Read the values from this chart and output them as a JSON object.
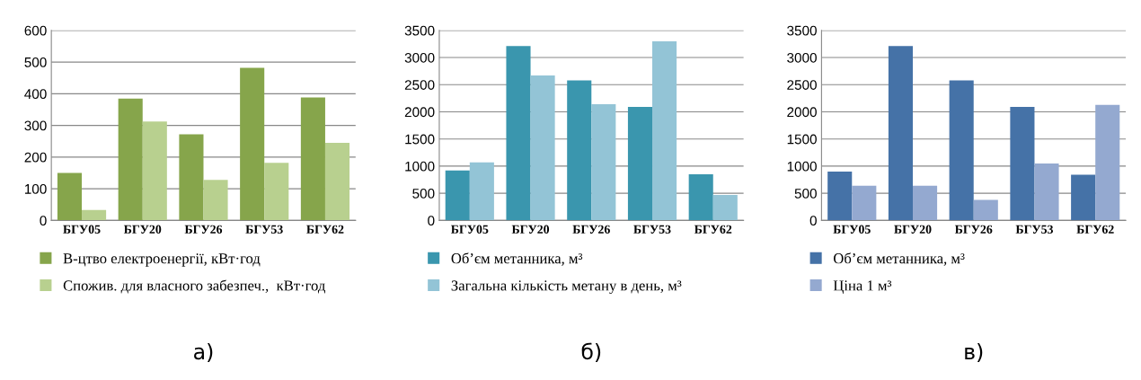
{
  "chart_data": [
    {
      "type": "bar",
      "categories": [
        "БГУ05",
        "БГУ20",
        "БГУ26",
        "БГУ53",
        "БГУ62"
      ],
      "ylim": [
        0,
        600
      ],
      "yticks": [
        0,
        100,
        200,
        300,
        400,
        500,
        600
      ],
      "grid": "y",
      "legend": "bottom",
      "annotations": [
        "а)"
      ],
      "series": [
        {
          "name": "В-цтво електроенергії, кВт·год",
          "color": "#86a54b",
          "values": [
            150,
            385,
            272,
            482,
            388
          ]
        },
        {
          "name": "Спожив. для власного забезпеч.,  кВт·год",
          "color": "#b8d08f",
          "values": [
            33,
            312,
            128,
            182,
            245
          ]
        }
      ]
    },
    {
      "type": "bar",
      "categories": [
        "БГУ05",
        "БГУ20",
        "БГУ26",
        "БГУ53",
        "БГУ62"
      ],
      "ylim": [
        0,
        3500
      ],
      "yticks": [
        0,
        500,
        1000,
        1500,
        2000,
        2500,
        3000,
        3500
      ],
      "grid": "y",
      "legend": "bottom",
      "annotations": [
        "б)"
      ],
      "series": [
        {
          "name": "Об’єм метанника, м³",
          "color": "#3a96ae",
          "values": [
            920,
            3210,
            2580,
            2090,
            850
          ]
        },
        {
          "name": "Загальна кількість метану в день, м³",
          "color": "#93c4d6",
          "values": [
            1070,
            2670,
            2140,
            3300,
            470
          ]
        }
      ]
    },
    {
      "type": "bar",
      "categories": [
        "БГУ05",
        "БГУ20",
        "БГУ26",
        "БГУ53",
        "БГУ62"
      ],
      "ylim": [
        0,
        3500
      ],
      "yticks": [
        0,
        500,
        1000,
        1500,
        2000,
        2500,
        3000,
        3500
      ],
      "grid": "y",
      "legend": "bottom",
      "annotations": [
        "в)"
      ],
      "series": [
        {
          "name": "Об’єм метанника, м³",
          "color": "#4572a7",
          "values": [
            900,
            3210,
            2580,
            2090,
            840
          ]
        },
        {
          "name": "Ціна 1 м³",
          "color": "#94a9d0",
          "values": [
            640,
            640,
            380,
            1050,
            2130
          ]
        }
      ]
    }
  ]
}
